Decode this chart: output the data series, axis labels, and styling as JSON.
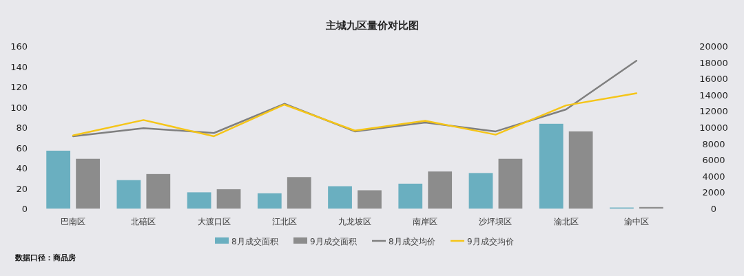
{
  "chart_data": {
    "type": "bar",
    "title": "主城九区量价对比图",
    "categories": [
      "巴南区",
      "北碚区",
      "大渡口区",
      "江北区",
      "九龙坡区",
      "南岸区",
      "沙坪坝区",
      "渝北区",
      "渝中区"
    ],
    "series": [
      {
        "name": "8月成交面积",
        "color": "#6aafc0",
        "values": [
          57,
          28,
          16,
          15,
          22,
          24.5,
          35,
          83.5,
          1
        ]
      },
      {
        "name": "9月成交面积",
        "color": "#8c8c8c",
        "values": [
          49,
          34,
          19,
          31,
          18,
          36.5,
          49,
          76,
          1.5
        ]
      },
      {
        "name": "8月成交均价",
        "type": "line",
        "axis": "y2",
        "color": "#7f7f7f",
        "values": [
          8900,
          9900,
          9300,
          12900,
          9500,
          10600,
          9500,
          12200,
          18200
        ]
      },
      {
        "name": "9月成交均价",
        "type": "line",
        "axis": "y2",
        "color": "#f5c518",
        "values": [
          9000,
          10900,
          8900,
          12800,
          9600,
          10800,
          9100,
          12700,
          14200
        ]
      }
    ],
    "ylim": [
      0,
      160
    ],
    "yticks": [
      0,
      20,
      40,
      60,
      80,
      100,
      120,
      140,
      160
    ],
    "y2lim": [
      0,
      20000
    ],
    "y2ticks": [
      0,
      2000,
      4000,
      6000,
      8000,
      10000,
      12000,
      14000,
      16000,
      18000,
      20000
    ],
    "legend": "bottom",
    "annotations": [
      "数据口径：商品房"
    ]
  }
}
